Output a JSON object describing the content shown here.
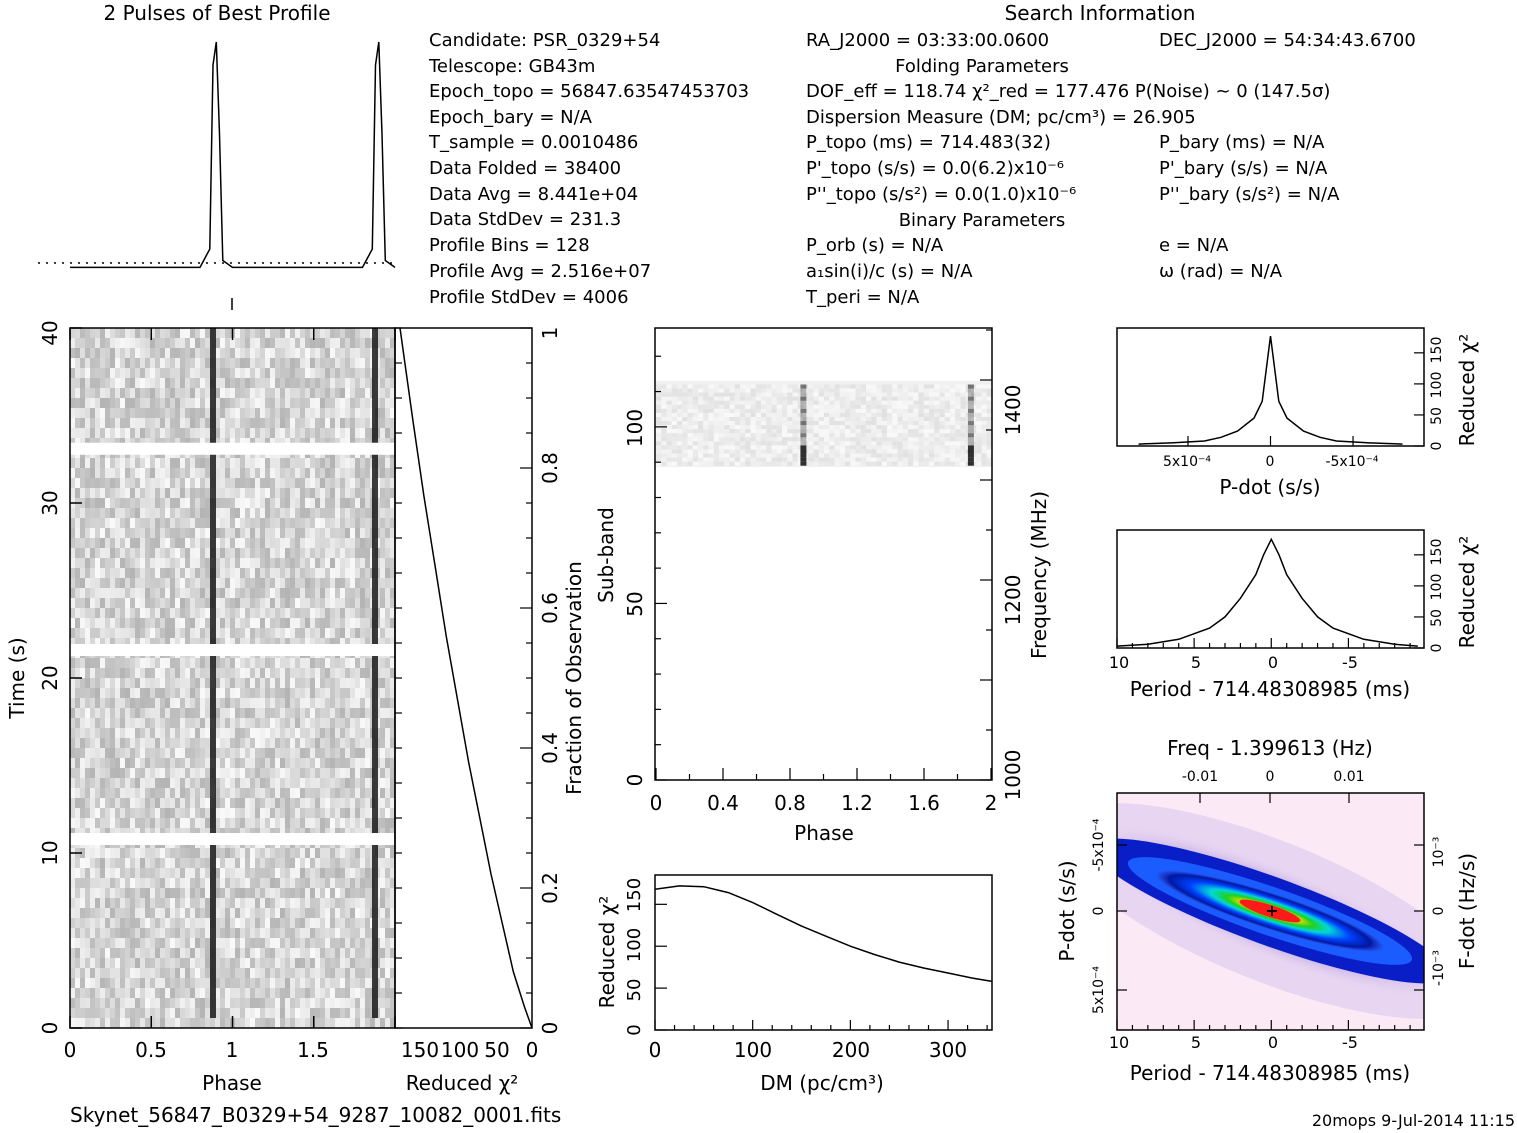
{
  "header": {
    "profile_title": "2 Pulses of Best Profile",
    "search_title": "Search Information",
    "folding_title": "Folding Parameters",
    "binary_title": "Binary Parameters"
  },
  "candidate_info": {
    "candidate": "Candidate:  PSR_0329+54",
    "telescope": "Telescope:  GB43m",
    "epoch_topo": "Epoch_topo = 56847.63547453703",
    "epoch_bary": "Epoch_bary = N/A",
    "t_sample": "T_sample   =  0.0010486",
    "data_folded": "Data Folded   =  38400",
    "data_avg": "Data Avg      =  8.441e+04",
    "data_stddev": "Data StdDev   =  231.3",
    "profile_bins": "Profile Bins  =  128",
    "profile_avg": "Profile Avg   =  2.516e+07",
    "profile_stddev": "Profile StdDev =  4006"
  },
  "search_info": {
    "ra": "RA_J2000 = 03:33:00.0600",
    "dec": "DEC_J2000 = 54:34:43.6700",
    "dof": "DOF_eff = 118.74   χ²_red = 177.476   P(Noise) ~ 0    (147.5σ)",
    "dm": "Dispersion Measure (DM; pc/cm³) = 26.905",
    "p_topo": "P_topo (ms) =  714.483(32)",
    "pd_topo": "P'_topo (s/s) = 0.0(6.2)x10⁻⁶",
    "pdd_topo": "P''_topo (s/s²) = 0.0(1.0)x10⁻⁶",
    "p_bary": "P_bary (ms) = N/A",
    "pd_bary": "P'_bary (s/s) = N/A",
    "pdd_bary": "P''_bary (s/s²) = N/A",
    "p_orb": "P_orb (s) = N/A",
    "a1sini": "a₁sin(i)/c (s) = N/A",
    "t_peri": "T_peri = N/A",
    "ecc": "e = N/A",
    "omega": "ω (rad) = N/A"
  },
  "footer": {
    "filename": "Skynet_56847_B0329+54_9287_10082_0001.fits",
    "stamp": "20mops   9-Jul-2014 11:15"
  },
  "chart_data": [
    {
      "id": "profile",
      "type": "line",
      "title": "2 Pulses of Best Profile",
      "x": [
        0,
        0.8,
        0.86,
        0.88,
        0.9,
        0.92,
        0.94,
        1.0,
        1.8,
        1.86,
        1.88,
        1.9,
        1.92,
        1.94,
        2.0
      ],
      "y": [
        0.02,
        0.02,
        0.1,
        0.9,
        1.0,
        0.6,
        0.05,
        0.02,
        0.02,
        0.1,
        0.9,
        1.0,
        0.6,
        0.05,
        0.02
      ],
      "xlim": [
        0,
        2
      ]
    },
    {
      "id": "time_phase",
      "type": "heatmap",
      "xlabel": "Phase",
      "ylabel": "Time (s)",
      "xlim": [
        0,
        2
      ],
      "ylim": [
        0,
        40
      ],
      "xticks": [
        "0",
        "0.5",
        "1",
        "1.5"
      ],
      "yticks": [
        "0",
        "10",
        "20",
        "30",
        "40"
      ],
      "pulse_phase": [
        0.88,
        1.88
      ],
      "gaps_time": [
        10.8,
        21.6,
        33.1
      ]
    },
    {
      "id": "chi_vs_time",
      "type": "line",
      "xlabel": "Reduced χ²",
      "ylabel": "Fraction of Observation",
      "xticks": [
        "150",
        "100",
        "50",
        "0"
      ],
      "yticks": [
        "0",
        "0.2",
        "0.4",
        "0.6",
        "0.8",
        "1"
      ],
      "x": [
        0,
        10,
        25,
        40,
        55,
        70,
        85,
        100,
        115,
        130,
        145,
        160,
        177
      ],
      "y": [
        0,
        0.03,
        0.08,
        0.15,
        0.22,
        0.3,
        0.38,
        0.47,
        0.56,
        0.66,
        0.76,
        0.87,
        1.0
      ]
    },
    {
      "id": "subband_phase",
      "type": "heatmap",
      "xlabel": "Phase",
      "ylabel": "Sub-band",
      "ylabel_right": "Frequency (MHz)",
      "xlim": [
        0,
        2
      ],
      "ylim": [
        0,
        128
      ],
      "xticks": [
        "0",
        "0.4",
        "0.8",
        "1.2",
        "1.6",
        "2"
      ],
      "yticks": [
        "0",
        "50",
        "100"
      ],
      "yticks_right": [
        "1000",
        "1200",
        "1400"
      ],
      "active_subbands": [
        89,
        112
      ]
    },
    {
      "id": "dm_curve",
      "type": "line",
      "xlabel": "DM (pc/cm³)",
      "ylabel": "Reduced χ²",
      "xlim": [
        0,
        345
      ],
      "xticks": [
        "0",
        "100",
        "200",
        "300"
      ],
      "yticks": [
        "0",
        "50",
        "100",
        "150"
      ],
      "x": [
        0,
        25,
        50,
        75,
        100,
        125,
        150,
        175,
        200,
        225,
        250,
        275,
        300,
        325,
        345
      ],
      "y": [
        168,
        172,
        171,
        164,
        152,
        138,
        124,
        112,
        100,
        90,
        81,
        74,
        68,
        62,
        58
      ]
    },
    {
      "id": "pdot_curve",
      "type": "line",
      "xlabel": "P-dot (s/s)",
      "ylabel": "Reduced χ²",
      "xticks": [
        "5x10⁻⁴",
        "0",
        "-5x10⁻⁴"
      ],
      "yticks": [
        "0",
        "50",
        "100",
        "150"
      ],
      "x": [
        0.0008,
        0.0006,
        0.0004,
        0.0003,
        0.0002,
        0.0001,
        5e-05,
        0,
        -5e-05,
        -0.0001,
        -0.0002,
        -0.0003,
        -0.0004,
        -0.0006,
        -0.0008
      ],
      "y": [
        3,
        5,
        8,
        14,
        24,
        45,
        72,
        177,
        72,
        45,
        24,
        14,
        8,
        5,
        3
      ]
    },
    {
      "id": "period_curve",
      "type": "line",
      "xlabel": "Period - 714.48308985 (ms)",
      "ylabel": "Reduced χ²",
      "xticks": [
        "10",
        "5",
        "0",
        "-5"
      ],
      "yticks": [
        "0",
        "50",
        "100",
        "150"
      ],
      "x": [
        10,
        8,
        6,
        4,
        3,
        2,
        1,
        0.5,
        0,
        -0.5,
        -1,
        -2,
        -3,
        -4,
        -6,
        -8,
        -9.5
      ],
      "y": [
        3,
        6,
        14,
        32,
        50,
        80,
        118,
        150,
        175,
        150,
        118,
        80,
        50,
        32,
        14,
        6,
        3
      ]
    },
    {
      "id": "p_pdot_plane",
      "type": "heatmap",
      "xlabel": "Period - 714.48308985 (ms)",
      "ylabel": "P-dot (s/s)",
      "top_label": "Freq - 1.399613 (Hz)",
      "right_label": "F-dot (Hz/s)",
      "xticks": [
        "10",
        "5",
        "0",
        "-5"
      ],
      "yticks": [
        "5x10⁻⁴",
        "0",
        "-5x10⁻⁴"
      ],
      "top_ticks": [
        "-0.01",
        "0",
        "0.01"
      ],
      "right_ticks": [
        "-10⁻³",
        "0",
        "10⁻³"
      ],
      "peak": [
        0,
        0
      ]
    }
  ]
}
